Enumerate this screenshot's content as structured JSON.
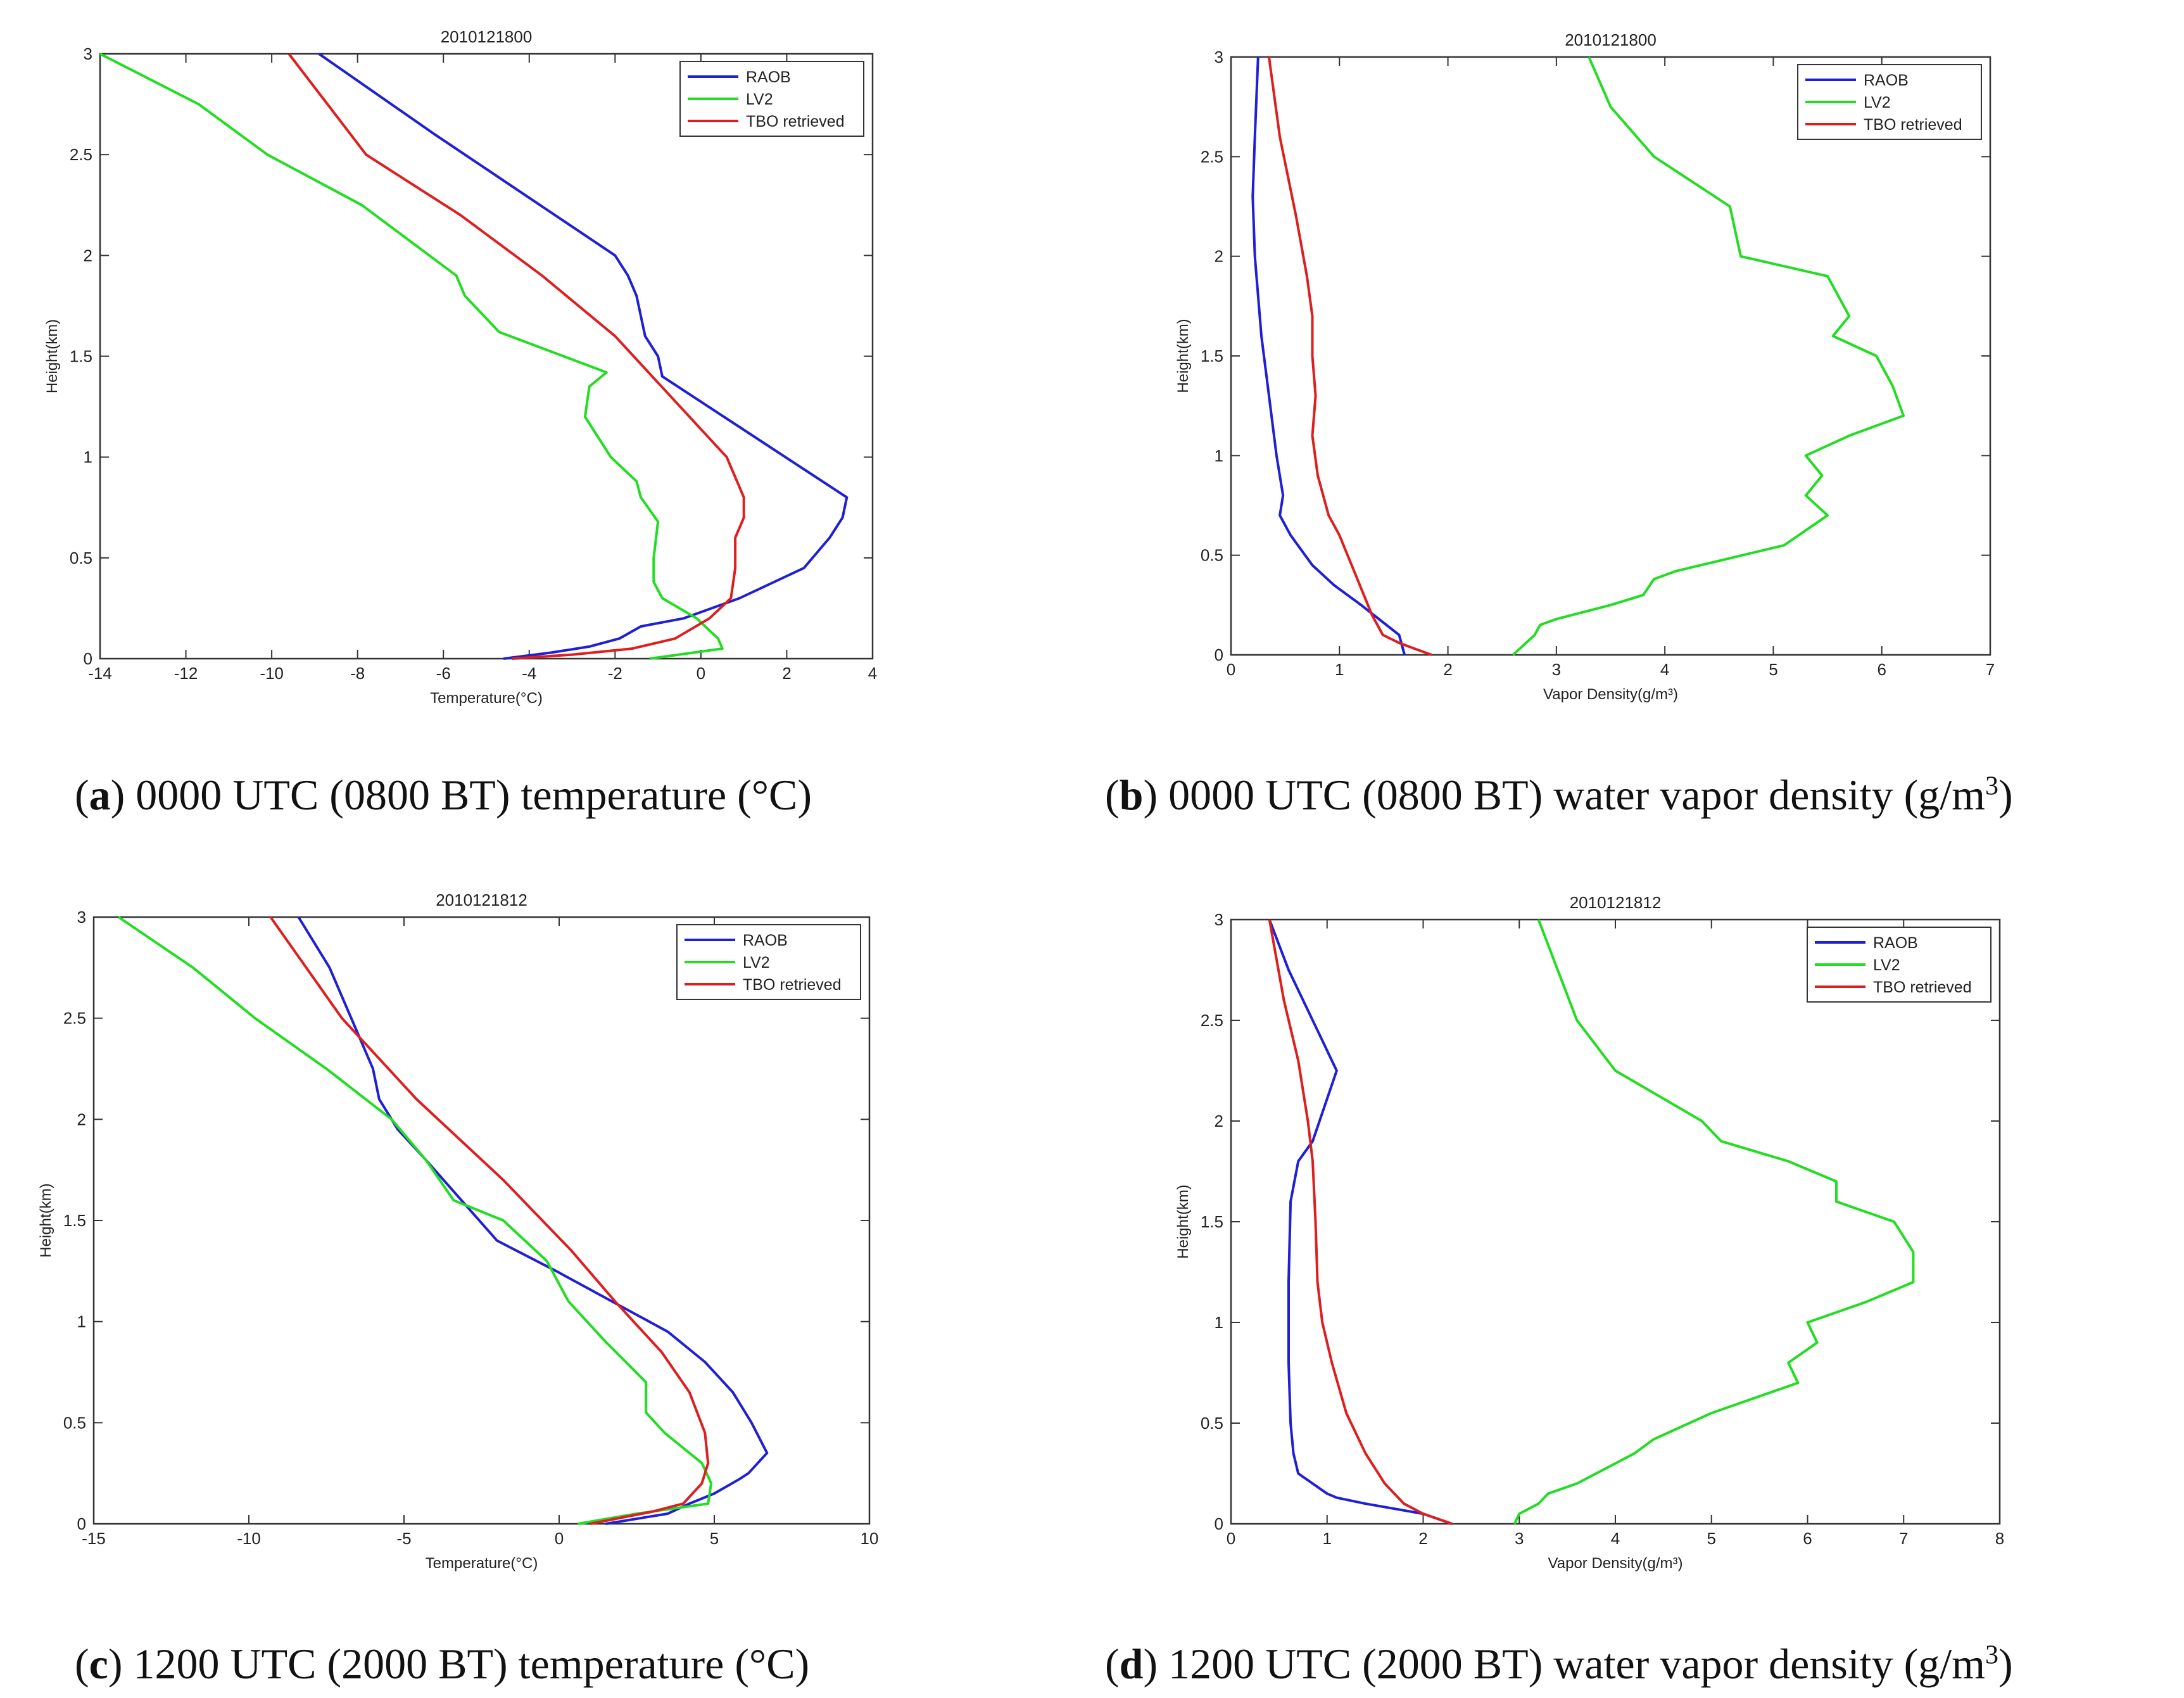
{
  "chart_data": [
    {
      "type": "line",
      "title": "2010121800",
      "xlabel": "Temperature(°C)",
      "ylabel": "Height(km)",
      "xlim": [
        -14,
        4
      ],
      "ylim": [
        0,
        3
      ],
      "xticks": [
        -14,
        -12,
        -10,
        -8,
        -6,
        -4,
        -2,
        0,
        2,
        4
      ],
      "yticks": [
        0,
        0.5,
        1,
        1.5,
        2,
        2.5,
        3
      ],
      "xtick_labels": [
        "-14",
        "-12",
        "-10",
        "-8",
        "-6",
        "-4",
        "-2",
        "0",
        "2",
        "4"
      ],
      "ytick_labels": [
        "0",
        "0.5",
        "1",
        "1.5",
        "2",
        "2.5",
        "3"
      ],
      "legend": [
        "RAOB",
        "LV2",
        "TBO retrieved"
      ],
      "series": [
        {
          "name": "RAOB",
          "color": "#1f1fd6",
          "x": [
            -4.6,
            -3.5,
            -2.6,
            -1.9,
            -1.4,
            -0.4,
            0.9,
            2.4,
            3.0,
            3.3,
            3.4,
            -0.9,
            -1.0,
            -1.3,
            -1.5,
            -1.7,
            -2.0,
            -4.1,
            -6.2,
            -8.9
          ],
          "y": [
            0.0,
            0.03,
            0.06,
            0.1,
            0.16,
            0.2,
            0.3,
            0.45,
            0.6,
            0.7,
            0.8,
            1.4,
            1.5,
            1.6,
            1.8,
            1.9,
            2.0,
            2.3,
            2.6,
            3.0
          ]
        },
        {
          "name": "LV2",
          "color": "#22dd22",
          "x": [
            -1.2,
            0.5,
            0.4,
            -0.1,
            -0.9,
            -1.1,
            -1.1,
            -1.0,
            -1.4,
            -1.5,
            -2.1,
            -2.7,
            -2.6,
            -2.2,
            -4.7,
            -5.5,
            -5.7,
            -7.9,
            -10.1,
            -11.7,
            -14.0
          ],
          "y": [
            0.0,
            0.05,
            0.1,
            0.2,
            0.3,
            0.38,
            0.5,
            0.68,
            0.8,
            0.88,
            1.0,
            1.2,
            1.35,
            1.42,
            1.62,
            1.8,
            1.9,
            2.25,
            2.5,
            2.75,
            3.0
          ]
        },
        {
          "name": "TBO retrieved",
          "color": "#dd1f1f",
          "x": [
            -4.4,
            -3.0,
            -1.6,
            -0.6,
            0.2,
            0.7,
            0.8,
            0.8,
            1.0,
            1.0,
            0.6,
            -0.7,
            -2.0,
            -3.7,
            -5.6,
            -7.8,
            -9.6
          ],
          "y": [
            0.0,
            0.02,
            0.05,
            0.1,
            0.2,
            0.3,
            0.45,
            0.6,
            0.7,
            0.8,
            1.0,
            1.3,
            1.6,
            1.9,
            2.2,
            2.5,
            3.0
          ]
        }
      ]
    },
    {
      "type": "line",
      "title": "2010121800",
      "xlabel": "Vapor Density(g/m³)",
      "ylabel": "Height(km)",
      "xlim": [
        0,
        7
      ],
      "ylim": [
        0,
        3
      ],
      "xticks": [
        0,
        1,
        2,
        3,
        4,
        5,
        6,
        7
      ],
      "yticks": [
        0,
        0.5,
        1,
        1.5,
        2,
        2.5,
        3
      ],
      "xtick_labels": [
        "0",
        "1",
        "2",
        "3",
        "4",
        "5",
        "6",
        "7"
      ],
      "ytick_labels": [
        "0",
        "0.5",
        "1",
        "1.5",
        "2",
        "2.5",
        "3"
      ],
      "legend": [
        "RAOB",
        "LV2",
        "TBO retrieved"
      ],
      "series": [
        {
          "name": "RAOB",
          "color": "#1f1fd6",
          "x": [
            1.6,
            1.55,
            1.2,
            0.95,
            0.75,
            0.55,
            0.45,
            0.48,
            0.42,
            0.35,
            0.28,
            0.22,
            0.2,
            0.22,
            0.25
          ],
          "y": [
            0.0,
            0.1,
            0.25,
            0.35,
            0.45,
            0.6,
            0.7,
            0.8,
            1.0,
            1.3,
            1.6,
            2.0,
            2.3,
            2.6,
            3.0
          ]
        },
        {
          "name": "LV2",
          "color": "#22dd22",
          "x": [
            2.6,
            2.7,
            2.8,
            2.85,
            3.0,
            3.5,
            3.8,
            3.9,
            4.1,
            5.1,
            5.5,
            5.3,
            5.45,
            5.3,
            5.7,
            6.2,
            6.1,
            5.95,
            5.55,
            5.7,
            5.5,
            4.7,
            4.6,
            3.9,
            3.5,
            3.3
          ],
          "y": [
            0.0,
            0.05,
            0.1,
            0.15,
            0.18,
            0.25,
            0.3,
            0.38,
            0.42,
            0.55,
            0.7,
            0.8,
            0.9,
            1.0,
            1.1,
            1.2,
            1.35,
            1.5,
            1.6,
            1.7,
            1.9,
            2.0,
            2.25,
            2.5,
            2.75,
            3.0
          ]
        },
        {
          "name": "TBO retrieved",
          "color": "#dd1f1f",
          "x": [
            1.85,
            1.7,
            1.55,
            1.4,
            1.3,
            1.15,
            1.0,
            0.9,
            0.8,
            0.75,
            0.78,
            0.75,
            0.75,
            0.7,
            0.6,
            0.45,
            0.35
          ],
          "y": [
            0.0,
            0.03,
            0.06,
            0.1,
            0.2,
            0.4,
            0.6,
            0.7,
            0.9,
            1.1,
            1.3,
            1.5,
            1.7,
            1.9,
            2.2,
            2.6,
            3.0
          ]
        }
      ]
    },
    {
      "type": "line",
      "title": "2010121812",
      "xlabel": "Temperature(°C)",
      "ylabel": "Height(km)",
      "xlim": [
        -15,
        10
      ],
      "ylim": [
        0,
        3
      ],
      "xticks": [
        -15,
        -10,
        -5,
        0,
        5,
        10
      ],
      "yticks": [
        0,
        0.5,
        1,
        1.5,
        2,
        2.5,
        3
      ],
      "xtick_labels": [
        "-15",
        "-10",
        "-5",
        "0",
        "5",
        "10"
      ],
      "ytick_labels": [
        "0",
        "0.5",
        "1",
        "1.5",
        "2",
        "2.5",
        "3"
      ],
      "legend": [
        "RAOB",
        "LV2",
        "TBO retrieved"
      ],
      "series": [
        {
          "name": "RAOB",
          "color": "#1f1fd6",
          "x": [
            1.5,
            3.5,
            4.2,
            5.0,
            5.8,
            6.1,
            6.7,
            6.2,
            5.6,
            4.7,
            3.5,
            1.7,
            -0.1,
            -2.0,
            -4.3,
            -5.2,
            -5.8,
            -6.0,
            -7.4,
            -8.4
          ],
          "y": [
            0.0,
            0.05,
            0.1,
            0.15,
            0.22,
            0.25,
            0.35,
            0.5,
            0.65,
            0.8,
            0.95,
            1.1,
            1.25,
            1.4,
            1.8,
            1.95,
            2.1,
            2.25,
            2.75,
            3.0
          ]
        },
        {
          "name": "LV2",
          "color": "#22dd22",
          "x": [
            0.6,
            2.5,
            4.8,
            4.9,
            4.6,
            3.4,
            2.8,
            2.8,
            1.5,
            0.3,
            -0.4,
            -1.8,
            -3.4,
            -4.3,
            -5.4,
            -7.5,
            -9.8,
            -11.8,
            -14.2
          ],
          "y": [
            0.0,
            0.05,
            0.1,
            0.2,
            0.3,
            0.45,
            0.55,
            0.7,
            0.9,
            1.1,
            1.3,
            1.5,
            1.6,
            1.8,
            2.0,
            2.25,
            2.5,
            2.75,
            3.0
          ]
        },
        {
          "name": "TBO retrieved",
          "color": "#dd1f1f",
          "x": [
            1.0,
            2.0,
            3.0,
            4.0,
            4.6,
            4.8,
            4.7,
            4.2,
            3.3,
            1.8,
            0.4,
            -1.8,
            -4.6,
            -7.0,
            -9.3
          ],
          "y": [
            0.0,
            0.03,
            0.06,
            0.1,
            0.2,
            0.3,
            0.45,
            0.65,
            0.85,
            1.1,
            1.35,
            1.7,
            2.1,
            2.5,
            3.0
          ]
        }
      ]
    },
    {
      "type": "line",
      "title": "2010121812",
      "xlabel": "Vapor Density(g/m³)",
      "ylabel": "Height(km)",
      "xlim": [
        0,
        8
      ],
      "ylim": [
        0,
        3
      ],
      "xticks": [
        0,
        1,
        2,
        3,
        4,
        5,
        6,
        7,
        8
      ],
      "yticks": [
        0,
        0.5,
        1,
        1.5,
        2,
        2.5,
        3
      ],
      "xtick_labels": [
        "0",
        "1",
        "2",
        "3",
        "4",
        "5",
        "6",
        "7",
        "8"
      ],
      "ytick_labels": [
        "0",
        "0.5",
        "1",
        "1.5",
        "2",
        "2.5",
        "3"
      ],
      "legend": [
        "RAOB",
        "LV2",
        "TBO retrieved"
      ],
      "series": [
        {
          "name": "RAOB",
          "color": "#1f1fd6",
          "x": [
            2.3,
            2.0,
            1.4,
            1.1,
            1.0,
            0.7,
            0.65,
            0.62,
            0.6,
            0.6,
            0.62,
            0.7,
            0.85,
            1.1,
            0.95,
            0.6,
            0.4
          ],
          "y": [
            0.0,
            0.05,
            0.1,
            0.13,
            0.15,
            0.25,
            0.35,
            0.5,
            0.8,
            1.2,
            1.6,
            1.8,
            1.9,
            2.25,
            2.4,
            2.75,
            3.0
          ]
        },
        {
          "name": "LV2",
          "color": "#22dd22",
          "x": [
            2.95,
            3.0,
            3.2,
            3.3,
            3.6,
            4.0,
            4.2,
            4.4,
            5.0,
            5.9,
            5.8,
            6.1,
            6.0,
            6.6,
            7.1,
            7.1,
            6.9,
            6.3,
            6.3,
            5.8,
            5.1,
            4.9,
            4.0,
            3.6,
            3.2
          ],
          "y": [
            0.0,
            0.05,
            0.1,
            0.15,
            0.2,
            0.3,
            0.35,
            0.42,
            0.55,
            0.7,
            0.8,
            0.9,
            1.0,
            1.1,
            1.2,
            1.35,
            1.5,
            1.6,
            1.7,
            1.8,
            1.9,
            2.0,
            2.25,
            2.5,
            3.0
          ]
        },
        {
          "name": "TBO retrieved",
          "color": "#dd1f1f",
          "x": [
            2.3,
            2.0,
            1.8,
            1.6,
            1.4,
            1.2,
            1.05,
            0.95,
            0.9,
            0.88,
            0.85,
            0.8,
            0.7,
            0.55,
            0.4
          ],
          "y": [
            0.0,
            0.05,
            0.1,
            0.2,
            0.35,
            0.55,
            0.8,
            1.0,
            1.2,
            1.5,
            1.8,
            2.0,
            2.3,
            2.6,
            3.0
          ]
        }
      ]
    }
  ],
  "captions": [
    {
      "letter": "a",
      "text": ") 0000 UTC (0800 BT) temperature (°C)"
    },
    {
      "letter": "b",
      "text": ") 0000 UTC (0800 BT) water vapor density (g/m",
      "sup": "3",
      "tail": ")"
    },
    {
      "letter": "c",
      "text": ") 1200 UTC (2000 BT) temperature (°C)"
    },
    {
      "letter": "d",
      "text": ") 1200 UTC (2000 BT) water vapor density (g/m",
      "sup": "3",
      "tail": ")"
    }
  ]
}
